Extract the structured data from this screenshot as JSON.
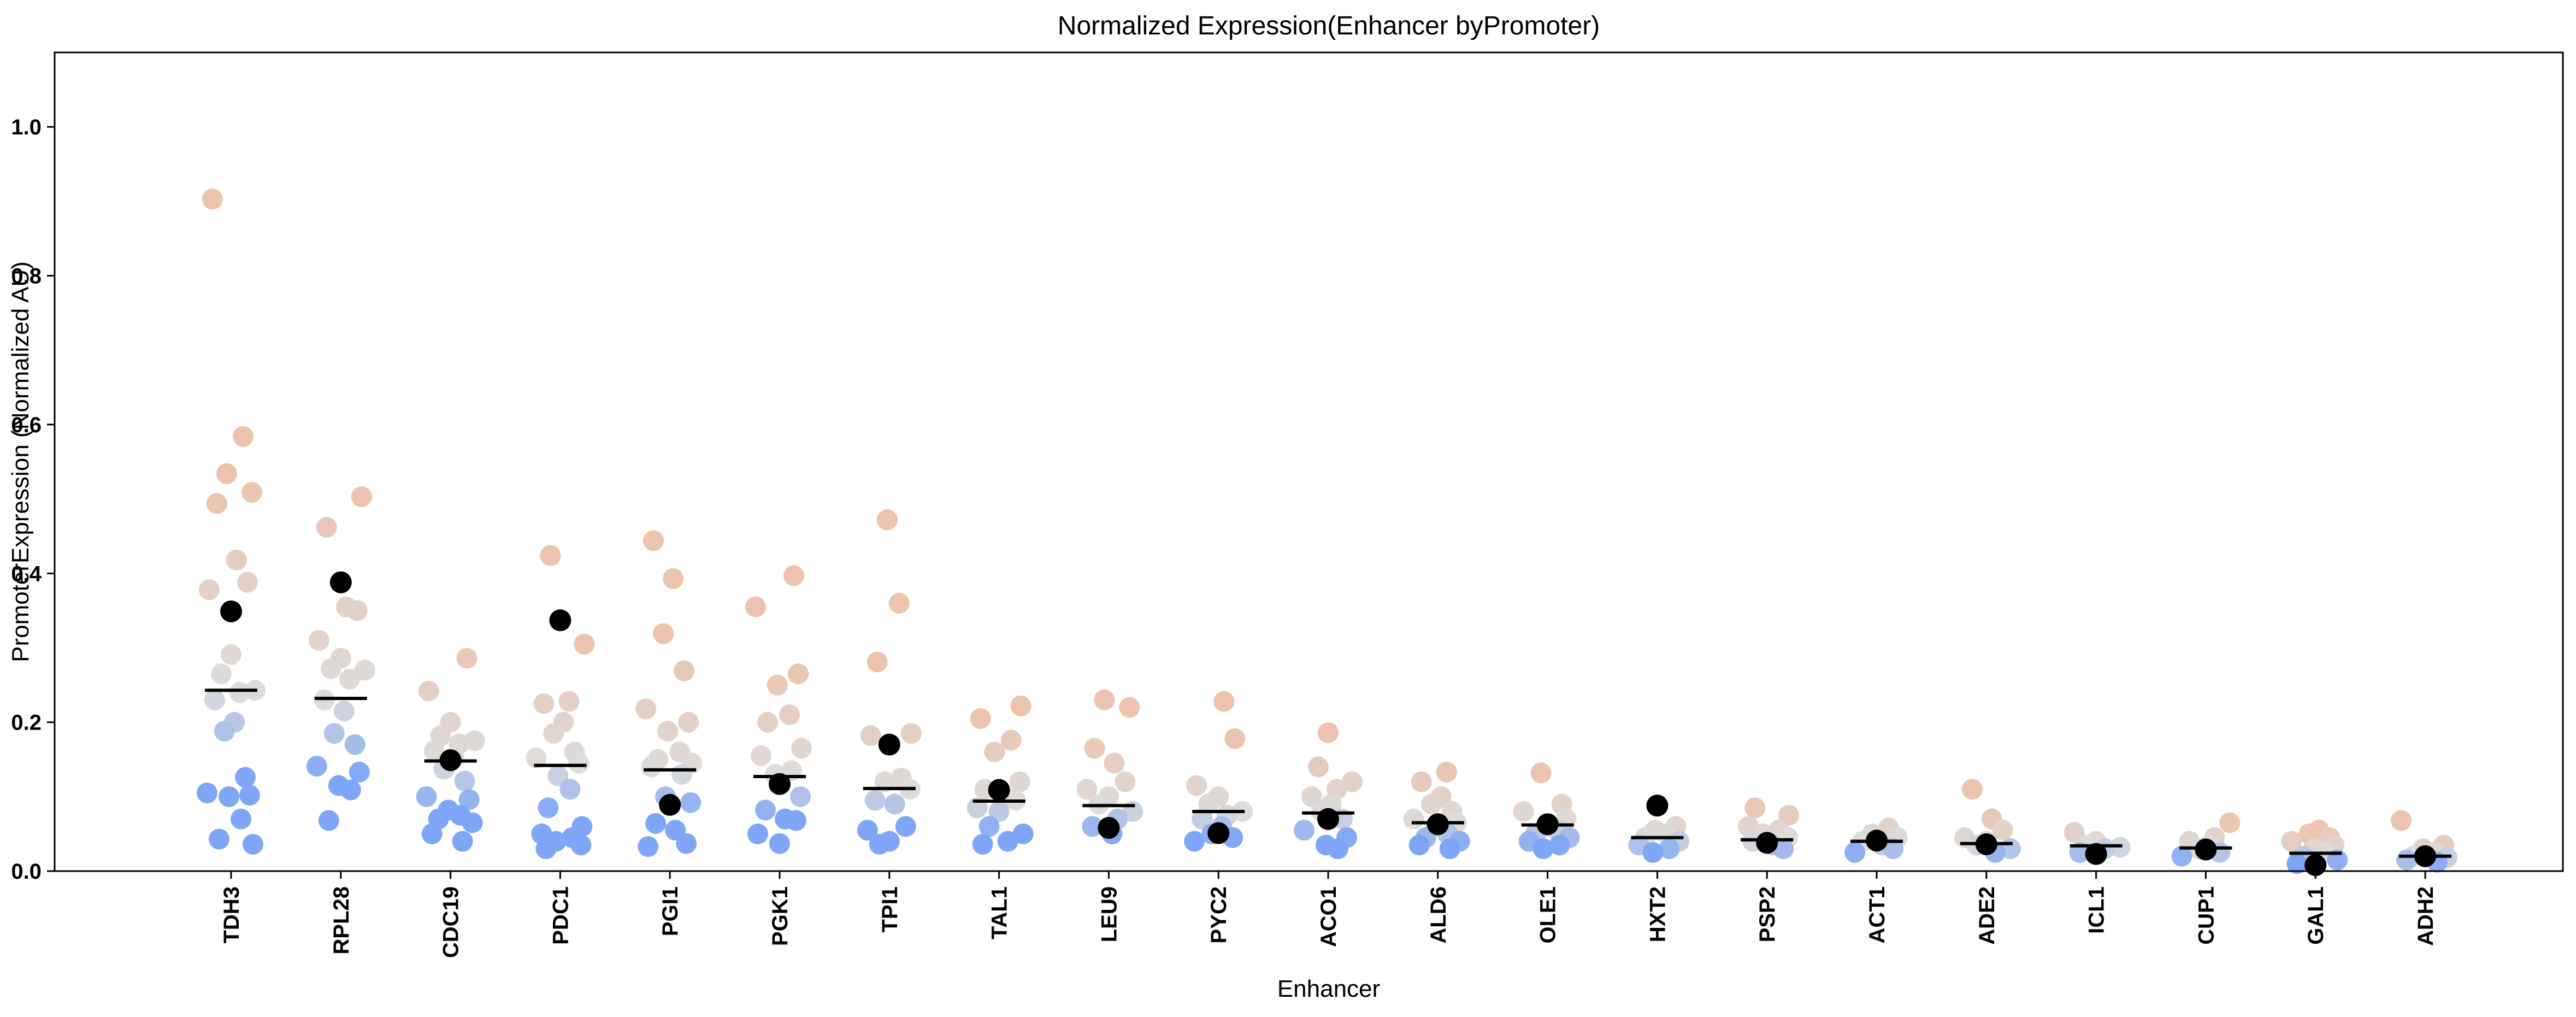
{
  "chart_data": {
    "type": "scatter",
    "title": "Normalized Expression(Enhancer byPromoter)",
    "xlabel": "Enhancer",
    "ylabel": "PromoterExpression (Normalized AU)",
    "ylim": [
      0,
      1.1
    ],
    "yticks": [
      "0.0",
      "0.2",
      "0.4",
      "0.6",
      "0.8",
      "1.0"
    ],
    "grid": false,
    "legend": "none",
    "categories": [
      "TDH3",
      "RPL28",
      "CDC19",
      "PDC1",
      "PGI1",
      "PGK1",
      "TPI1",
      "TAL1",
      "LEU9",
      "PYC2",
      "ACO1",
      "ALD6",
      "OLE1",
      "HXT2",
      "PSP2",
      "ACT1",
      "ADE2",
      "ICL1",
      "CUP1",
      "GAL1",
      "ADH2"
    ],
    "median": [
      0.243,
      0.232,
      0.148,
      0.142,
      0.136,
      0.127,
      0.111,
      0.094,
      0.088,
      0.08,
      0.078,
      0.065,
      0.062,
      0.045,
      0.042,
      0.04,
      0.037,
      0.034,
      0.031,
      0.024,
      0.02
    ],
    "enhancer_alone": [
      0.349,
      0.388,
      0.149,
      0.337,
      0.089,
      0.117,
      0.17,
      0.109,
      0.058,
      0.051,
      0.07,
      0.063,
      0.063,
      0.088,
      0.038,
      0.041,
      0.036,
      0.023,
      0.029,
      0.008,
      0.02
    ],
    "points": [
      [
        0.903,
        0.584,
        0.534,
        0.509,
        0.494,
        0.418,
        0.388,
        0.378,
        0.291,
        0.265,
        0.243,
        0.24,
        0.23,
        0.2,
        0.188,
        0.126,
        0.105,
        0.102,
        0.1,
        0.07,
        0.043,
        0.036
      ],
      [
        0.503,
        0.462,
        0.355,
        0.35,
        0.31,
        0.286,
        0.272,
        0.27,
        0.258,
        0.23,
        0.215,
        0.185,
        0.17,
        0.141,
        0.133,
        0.115,
        0.109,
        0.068
      ],
      [
        0.286,
        0.242,
        0.2,
        0.182,
        0.175,
        0.171,
        0.162,
        0.153,
        0.137,
        0.121,
        0.1,
        0.096,
        0.082,
        0.075,
        0.07,
        0.065,
        0.05,
        0.04
      ],
      [
        0.424,
        0.305,
        0.228,
        0.225,
        0.2,
        0.185,
        0.16,
        0.152,
        0.145,
        0.128,
        0.11,
        0.085,
        0.06,
        0.05,
        0.045,
        0.04,
        0.035,
        0.03
      ],
      [
        0.444,
        0.393,
        0.319,
        0.269,
        0.218,
        0.2,
        0.188,
        0.16,
        0.15,
        0.145,
        0.14,
        0.13,
        0.1,
        0.092,
        0.064,
        0.055,
        0.037,
        0.033
      ],
      [
        0.397,
        0.355,
        0.265,
        0.25,
        0.21,
        0.2,
        0.165,
        0.155,
        0.135,
        0.13,
        0.1,
        0.082,
        0.07,
        0.068,
        0.05,
        0.037
      ],
      [
        0.472,
        0.36,
        0.281,
        0.185,
        0.182,
        0.125,
        0.12,
        0.11,
        0.095,
        0.09,
        0.06,
        0.055,
        0.04,
        0.036
      ],
      [
        0.222,
        0.205,
        0.176,
        0.16,
        0.12,
        0.11,
        0.1,
        0.095,
        0.085,
        0.08,
        0.06,
        0.05,
        0.04,
        0.036
      ],
      [
        0.23,
        0.22,
        0.165,
        0.145,
        0.12,
        0.11,
        0.1,
        0.09,
        0.08,
        0.07,
        0.06,
        0.05
      ],
      [
        0.228,
        0.178,
        0.115,
        0.1,
        0.09,
        0.08,
        0.075,
        0.07,
        0.06,
        0.05,
        0.045,
        0.04
      ],
      [
        0.186,
        0.14,
        0.12,
        0.11,
        0.1,
        0.09,
        0.08,
        0.07,
        0.055,
        0.045,
        0.035,
        0.03
      ],
      [
        0.133,
        0.12,
        0.1,
        0.09,
        0.08,
        0.07,
        0.065,
        0.06,
        0.05,
        0.045,
        0.04,
        0.035,
        0.03
      ],
      [
        0.132,
        0.09,
        0.08,
        0.07,
        0.06,
        0.055,
        0.05,
        0.045,
        0.04,
        0.035,
        0.03
      ],
      [
        0.06,
        0.055,
        0.05,
        0.045,
        0.04,
        0.035,
        0.03,
        0.025
      ],
      [
        0.085,
        0.075,
        0.06,
        0.055,
        0.05,
        0.045,
        0.04,
        0.035,
        0.03
      ],
      [
        0.058,
        0.05,
        0.045,
        0.04,
        0.035,
        0.03,
        0.025
      ],
      [
        0.11,
        0.07,
        0.055,
        0.045,
        0.04,
        0.035,
        0.03,
        0.025
      ],
      [
        0.052,
        0.04,
        0.035,
        0.032,
        0.03,
        0.025
      ],
      [
        0.065,
        0.045,
        0.04,
        0.035,
        0.03,
        0.025,
        0.02
      ],
      [
        0.055,
        0.05,
        0.045,
        0.04,
        0.035,
        0.03,
        0.025,
        0.02,
        0.015,
        0.01
      ],
      [
        0.068,
        0.035,
        0.03,
        0.025,
        0.02,
        0.018,
        0.015,
        0.012
      ]
    ],
    "color_scale": {
      "low": "#7fa6f6",
      "mid": "#dddcdb",
      "high": "#ebc3ae"
    },
    "median_color": "#000000",
    "enhancer_alone_color": "#000000"
  }
}
